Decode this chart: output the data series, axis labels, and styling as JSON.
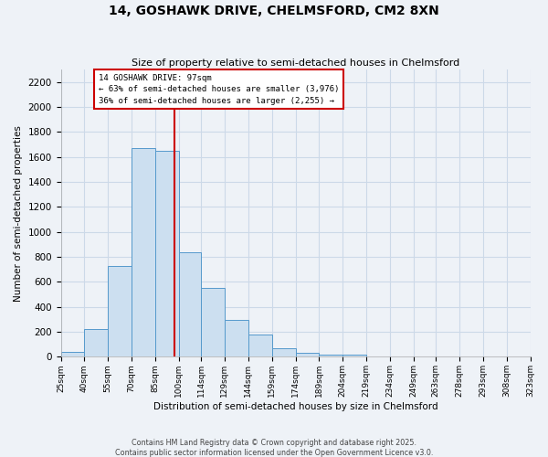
{
  "title": "14, GOSHAWK DRIVE, CHELMSFORD, CM2 8XN",
  "subtitle": "Size of property relative to semi-detached houses in Chelmsford",
  "xlabel": "Distribution of semi-detached houses by size in Chelmsford",
  "ylabel": "Number of semi-detached properties",
  "bin_edges": [
    25,
    40,
    55,
    70,
    85,
    100,
    114,
    129,
    144,
    159,
    174,
    189,
    204,
    219,
    234,
    249,
    263,
    278,
    293,
    308,
    323
  ],
  "bin_labels": [
    "25sqm",
    "40sqm",
    "55sqm",
    "70sqm",
    "85sqm",
    "100sqm",
    "114sqm",
    "129sqm",
    "144sqm",
    "159sqm",
    "174sqm",
    "189sqm",
    "204sqm",
    "219sqm",
    "234sqm",
    "249sqm",
    "263sqm",
    "278sqm",
    "293sqm",
    "308sqm",
    "323sqm"
  ],
  "values": [
    40,
    220,
    725,
    1670,
    1650,
    840,
    555,
    295,
    180,
    70,
    35,
    20,
    15,
    0,
    0,
    0,
    0,
    0,
    0,
    0
  ],
  "bar_facecolor": "#ccdff0",
  "bar_edgecolor": "#5599cc",
  "property_value": 97,
  "property_label": "14 GOSHAWK DRIVE: 97sqm",
  "pct_smaller": 63,
  "pct_larger": 36,
  "count_smaller": 3976,
  "count_larger": 2255,
  "vline_color": "#cc0000",
  "annotation_box_edgecolor": "#cc0000",
  "ylim": [
    0,
    2300
  ],
  "yticks": [
    0,
    200,
    400,
    600,
    800,
    1000,
    1200,
    1400,
    1600,
    1800,
    2000,
    2200
  ],
  "grid_color": "#ccd9e8",
  "background_color": "#eef2f7",
  "footer_line1": "Contains HM Land Registry data © Crown copyright and database right 2025.",
  "footer_line2": "Contains public sector information licensed under the Open Government Licence v3.0."
}
